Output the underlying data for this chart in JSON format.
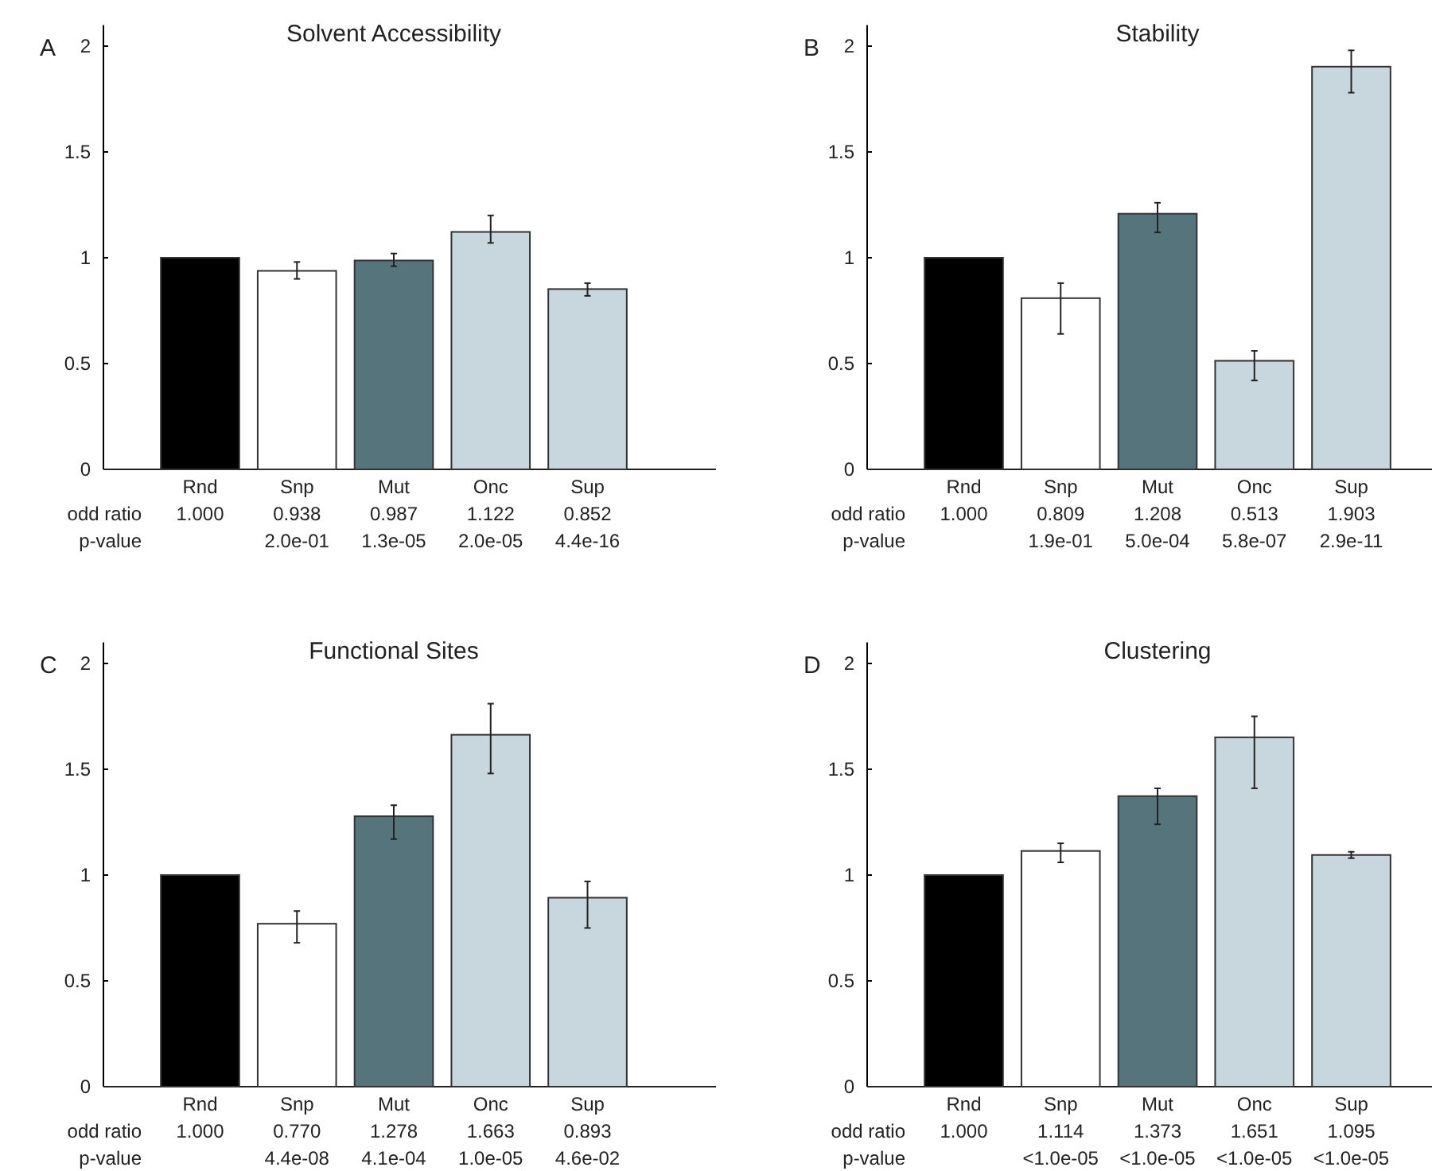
{
  "chart_data": [
    {
      "type": "bar",
      "title": "Solvent Accessibility",
      "categories": [
        "Rnd",
        "Snp",
        "Mut",
        "Onc",
        "Sup"
      ],
      "values": [
        1.0,
        0.938,
        0.987,
        1.122,
        0.852
      ],
      "value_labels": [
        "1.000",
        "0.938",
        "0.987",
        "1.122",
        "0.852"
      ],
      "colors": [
        "#000000",
        "#ffffff",
        "#56747c",
        "#c8d7de",
        "#c8d7de"
      ],
      "errors": [
        null,
        [
          0.9,
          0.98
        ],
        [
          0.96,
          1.02
        ],
        [
          1.07,
          1.2
        ],
        [
          0.82,
          0.88
        ]
      ],
      "ylim": [
        0,
        2.1
      ],
      "yticks": [
        0,
        0.5,
        1,
        1.5,
        2
      ],
      "annotations": [
        "A",
        "odd ratio",
        "p-value",
        "2.0e-01",
        "1.3e-05",
        "2.0e-05",
        "4.4e-16"
      ]
    },
    {
      "type": "bar",
      "title": "Stability",
      "categories": [
        "Rnd",
        "Snp",
        "Mut",
        "Onc",
        "Sup"
      ],
      "values": [
        1.0,
        0.809,
        1.208,
        0.513,
        1.903
      ],
      "value_labels": [
        "1.000",
        "0.809",
        "1.208",
        "0.513",
        "1.903"
      ],
      "colors": [
        "#000000",
        "#ffffff",
        "#56747c",
        "#c8d7de",
        "#c8d7de"
      ],
      "errors": [
        null,
        [
          0.64,
          0.88
        ],
        [
          1.12,
          1.26
        ],
        [
          0.42,
          0.56
        ],
        [
          1.78,
          1.98
        ]
      ],
      "ylim": [
        0,
        2.1
      ],
      "yticks": [
        0,
        0.5,
        1,
        1.5,
        2
      ],
      "annotations": [
        "B",
        "odd ratio",
        "p-value",
        "1.9e-01",
        "5.0e-04",
        "5.8e-07",
        "2.9e-11"
      ]
    },
    {
      "type": "bar",
      "title": "Functional Sites",
      "categories": [
        "Rnd",
        "Snp",
        "Mut",
        "Onc",
        "Sup"
      ],
      "values": [
        1.0,
        0.77,
        1.278,
        1.663,
        0.893
      ],
      "value_labels": [
        "1.000",
        "0.770",
        "1.278",
        "1.663",
        "0.893"
      ],
      "colors": [
        "#000000",
        "#ffffff",
        "#56747c",
        "#c8d7de",
        "#c8d7de"
      ],
      "errors": [
        null,
        [
          0.68,
          0.83
        ],
        [
          1.17,
          1.33
        ],
        [
          1.48,
          1.81
        ],
        [
          0.75,
          0.97
        ]
      ],
      "ylim": [
        0,
        2.1
      ],
      "yticks": [
        0,
        0.5,
        1,
        1.5,
        2
      ],
      "annotations": [
        "C",
        "odd ratio",
        "p-value",
        "4.4e-08",
        "4.1e-04",
        "1.0e-05",
        "4.6e-02"
      ]
    },
    {
      "type": "bar",
      "title": "Clustering",
      "categories": [
        "Rnd",
        "Snp",
        "Mut",
        "Onc",
        "Sup"
      ],
      "values": [
        1.0,
        1.114,
        1.373,
        1.651,
        1.095
      ],
      "value_labels": [
        "1.000",
        "1.114",
        "1.373",
        "1.651",
        "1.095"
      ],
      "colors": [
        "#000000",
        "#ffffff",
        "#56747c",
        "#c8d7de",
        "#c8d7de"
      ],
      "errors": [
        null,
        [
          1.06,
          1.15
        ],
        [
          1.24,
          1.41
        ],
        [
          1.41,
          1.75
        ],
        [
          1.08,
          1.11
        ]
      ],
      "ylim": [
        0,
        2.1
      ],
      "yticks": [
        0,
        0.5,
        1,
        1.5,
        2
      ],
      "annotations": [
        "D",
        "odd ratio",
        "p-value",
        "<1.0e-05",
        "<1.0e-05",
        "<1.0e-05",
        "<1.0e-05"
      ]
    }
  ]
}
